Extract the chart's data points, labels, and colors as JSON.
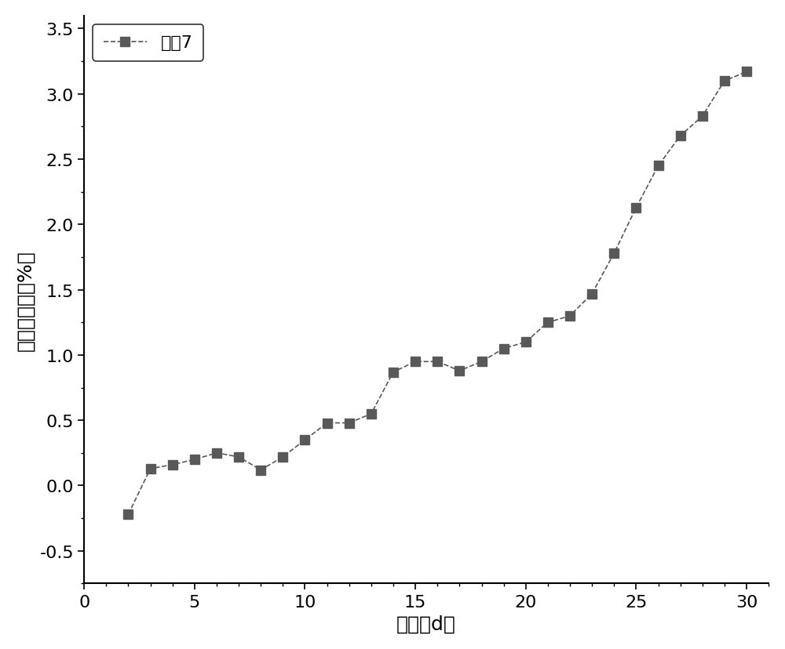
{
  "x": [
    2,
    3,
    4,
    5,
    6,
    7,
    8,
    9,
    10,
    11,
    12,
    13,
    14,
    15,
    16,
    17,
    18,
    19,
    20,
    21,
    22,
    23,
    24,
    25,
    26,
    27,
    28,
    29,
    30
  ],
  "y": [
    -0.22,
    0.13,
    0.16,
    0.2,
    0.25,
    0.22,
    0.12,
    0.22,
    0.35,
    0.48,
    0.48,
    0.55,
    0.87,
    0.95,
    0.95,
    0.88,
    0.95,
    1.05,
    1.1,
    1.25,
    1.3,
    1.47,
    1.78,
    2.13,
    2.45,
    2.68,
    2.83,
    3.1,
    3.17
  ],
  "xlabel": "时间（d）",
  "ylabel": "氧化增重率（%）",
  "legend_label": "矿杴7",
  "xlim": [
    0,
    31
  ],
  "ylim": [
    -0.75,
    3.6
  ],
  "xticks": [
    0,
    5,
    10,
    15,
    20,
    25,
    30
  ],
  "yticks": [
    -0.5,
    0.0,
    0.5,
    1.0,
    1.5,
    2.0,
    2.5,
    3.0,
    3.5
  ],
  "line_color": "#595959",
  "marker_color": "#595959",
  "background_color": "#ffffff",
  "label_fontsize": 18,
  "tick_fontsize": 16,
  "legend_fontsize": 16,
  "line_width": 1.2,
  "marker_size": 9
}
